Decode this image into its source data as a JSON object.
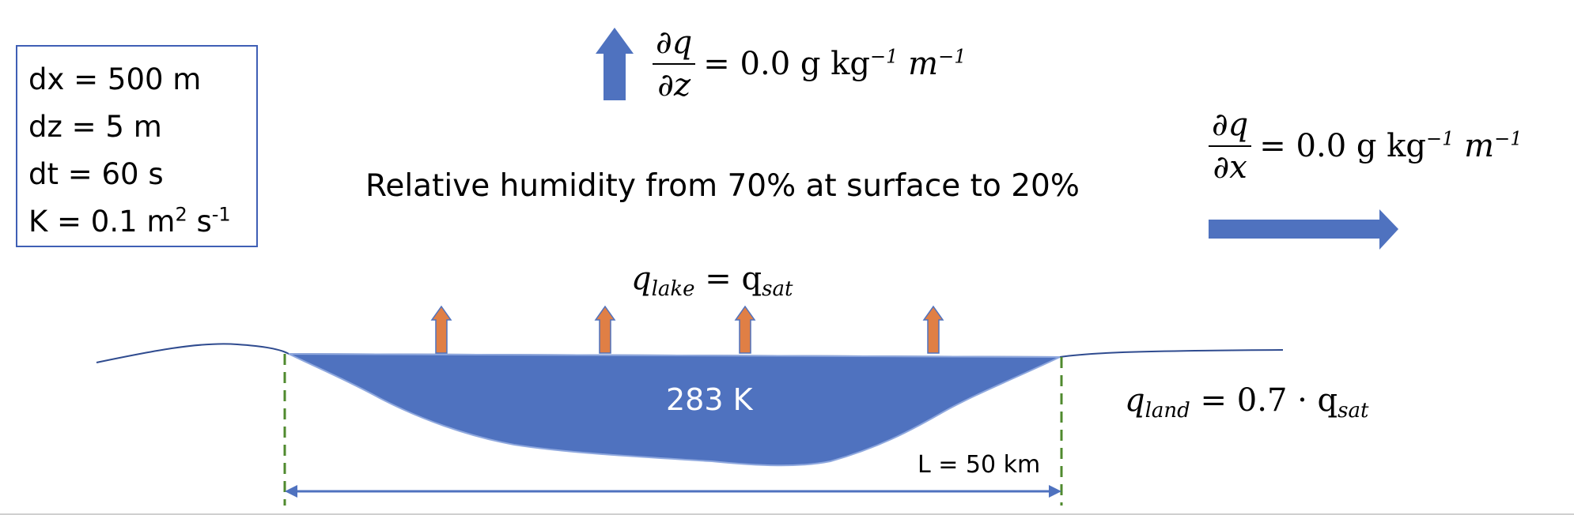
{
  "parameters": {
    "dx": "dx = 500 m",
    "dz": "dz = 5 m",
    "dt": "dt = 60 s",
    "k_prefix": "K  = 0.1 m",
    "k_exp1": "2",
    "k_mid": " s",
    "k_exp2": "-1"
  },
  "vertical_gradient": {
    "numerator": "∂q",
    "denominator": "∂z",
    "value": "= 0.0 g kg",
    "exp1": "−1",
    "unit2": " m",
    "exp2": "−1"
  },
  "horizontal_gradient": {
    "numerator": "∂q",
    "denominator": "∂x",
    "value": "= 0.0 g kg",
    "exp1": "−1",
    "unit2": " m",
    "exp2": "−1"
  },
  "relative_humidity": "Relative humidity from 70% at surface to 20%",
  "lake_condition": {
    "q": "q",
    "sub": "lake",
    "rhs": " = q",
    "rhs_sub": "sat"
  },
  "land_condition": {
    "q": "q",
    "sub": "land",
    "rhs": " = 0.7 · q",
    "rhs_sub": "sat"
  },
  "lake_temperature": "283 K",
  "lake_length": "L = 50 km",
  "colors": {
    "water": "#4f72bf",
    "flux_arrow": "#e07f45",
    "border": "#3f5fb5",
    "boundary": "#4f8a2e"
  }
}
